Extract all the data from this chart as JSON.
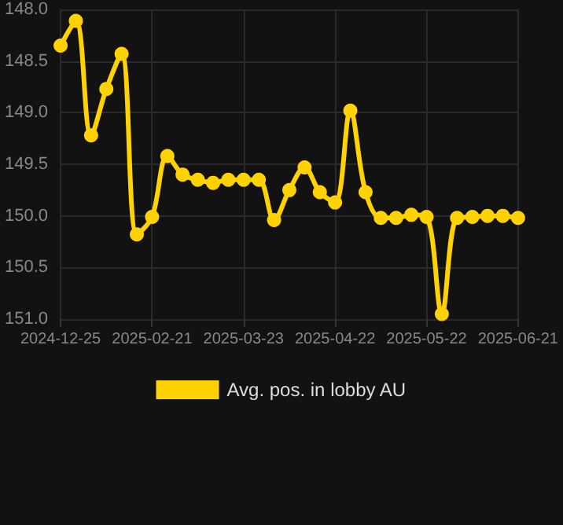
{
  "chart_data": {
    "type": "line",
    "categories": [
      "2024-12-25",
      null,
      null,
      null,
      null,
      null,
      "2025-02-21",
      null,
      null,
      null,
      null,
      null,
      "2025-03-23",
      null,
      null,
      null,
      null,
      null,
      "2025-04-22",
      null,
      null,
      null,
      null,
      null,
      "2025-05-22",
      null,
      null,
      null,
      null,
      null,
      "2025-06-21"
    ],
    "series": [
      {
        "name": "Avg. pos. in lobby AU",
        "color": "#ffd200",
        "values": [
          148.35,
          148.11,
          149.22,
          148.77,
          148.43,
          150.18,
          150.01,
          149.42,
          149.6,
          149.65,
          149.68,
          149.65,
          149.65,
          149.65,
          150.04,
          149.75,
          149.53,
          149.77,
          149.87,
          148.98,
          149.77,
          150.02,
          150.02,
          149.99,
          150.01,
          150.95,
          150.02,
          150.01,
          150.0,
          150.0,
          150.02
        ]
      }
    ],
    "ylim": [
      151,
      148
    ],
    "yticks": [
      {
        "value": 148,
        "label": "148.0"
      },
      {
        "value": 148.5,
        "label": "148.5"
      },
      {
        "value": 149,
        "label": "149.0"
      },
      {
        "value": 149.5,
        "label": "149.5"
      },
      {
        "value": 150,
        "label": "150.0"
      },
      {
        "value": 150.5,
        "label": "150.5"
      },
      {
        "value": 151,
        "label": "151.0"
      }
    ],
    "grid": true,
    "legend": "bottom",
    "marker": "circle",
    "line_style": "solid"
  }
}
